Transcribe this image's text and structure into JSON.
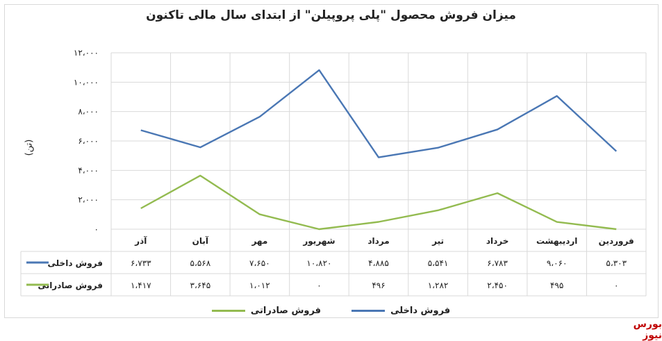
{
  "colors": {
    "series_domestic": "#4a77b4",
    "series_export": "#93bb50",
    "brand": "#c00000"
  },
  "brand": "بورس نیوز",
  "chart_data": {
    "type": "line",
    "title": "میزان فروش محصول \"پلی پروپیلن\" از ابتدای سال مالی تاکنون",
    "ylabel": "(تن)",
    "xlabel": "",
    "ylim": [
      0,
      12000
    ],
    "yticks": [
      "۰",
      "۲،۰۰۰",
      "۴،۰۰۰",
      "۶،۰۰۰",
      "۸،۰۰۰",
      "۱۰،۰۰۰",
      "۱۲،۰۰۰"
    ],
    "grid": true,
    "legend_position": "bottom",
    "categories": [
      "فروردین",
      "اردیبهشت",
      "خرداد",
      "تیر",
      "مرداد",
      "شهریور",
      "مهر",
      "آبان",
      "آذر"
    ],
    "series": [
      {
        "name": "فروش داخلی",
        "color": "#4a77b4",
        "values": [
          5303,
          9060,
          6783,
          5541,
          4885,
          10820,
          7650,
          5568,
          6733
        ],
        "labels": [
          "۵،۳۰۳",
          "۹،۰۶۰",
          "۶،۷۸۳",
          "۵،۵۴۱",
          "۴،۸۸۵",
          "۱۰،۸۲۰",
          "۷،۶۵۰",
          "۵،۵۶۸",
          "۶،۷۳۳"
        ]
      },
      {
        "name": "فروش صادراتی",
        "color": "#93bb50",
        "values": [
          0,
          495,
          2450,
          1282,
          496,
          0,
          1012,
          3645,
          1417
        ],
        "labels": [
          "۰",
          "۴۹۵",
          "۲،۴۵۰",
          "۱،۲۸۲",
          "۴۹۶",
          "۰",
          "۱،۰۱۲",
          "۳،۶۴۵",
          "۱،۴۱۷"
        ]
      }
    ]
  }
}
